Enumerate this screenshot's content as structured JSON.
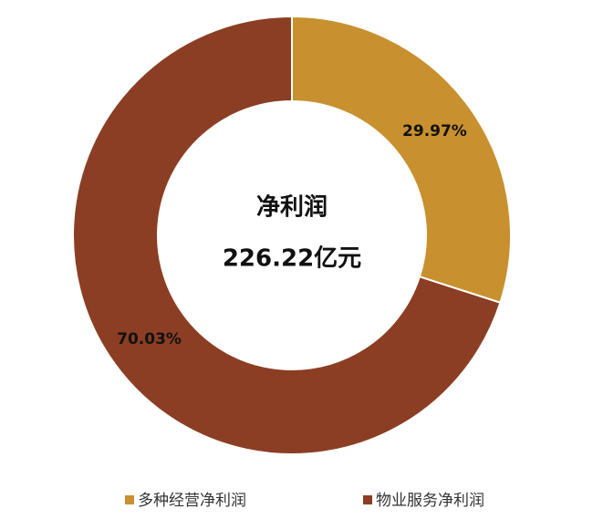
{
  "chart_data": {
    "type": "donut",
    "categories": [
      "多种经营净利润",
      "物业服务净利润"
    ],
    "values": [
      29.97,
      70.03
    ],
    "value_labels": [
      "29.97%",
      "70.03%"
    ],
    "colors": [
      "#c8902e",
      "#8b3e23"
    ],
    "center_title": "净利润",
    "center_value": "226.22亿元"
  }
}
